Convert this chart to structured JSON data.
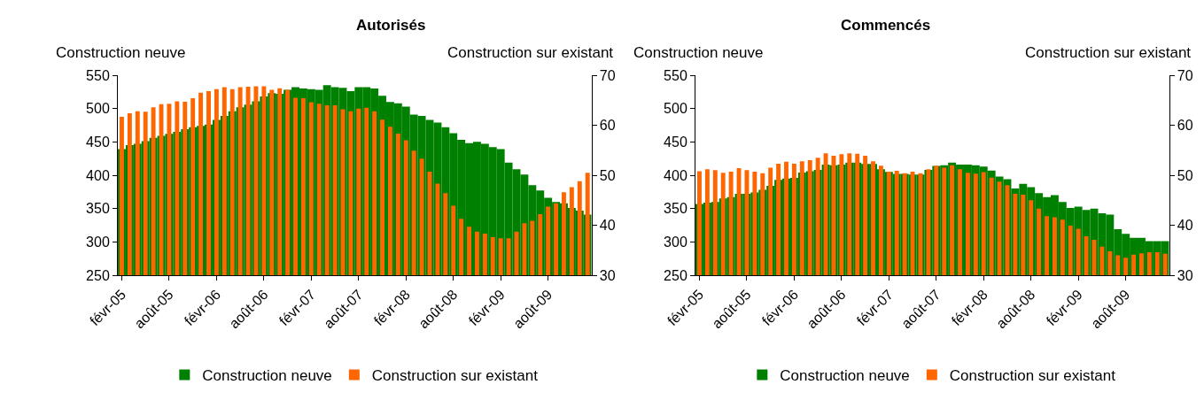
{
  "chart_data": [
    {
      "type": "bar",
      "title": "Autorisés",
      "ylabel": "Construction neuve",
      "y2label": "Construction sur existant",
      "categories": [
        "févr-05",
        null,
        null,
        null,
        null,
        null,
        "août-05",
        null,
        null,
        null,
        null,
        null,
        "févr-06",
        null,
        null,
        null,
        null,
        null,
        "août-06",
        null,
        null,
        null,
        null,
        null,
        "févr-07",
        null,
        null,
        null,
        null,
        null,
        "août-07",
        null,
        null,
        null,
        null,
        null,
        "févr-08",
        null,
        null,
        null,
        null,
        null,
        "août-08",
        null,
        null,
        null,
        null,
        null,
        "févr-09",
        null,
        null,
        null,
        null,
        null,
        "août-09",
        null,
        null,
        null,
        null,
        null
      ],
      "series": [
        {
          "name": "Construction neuve",
          "color": "#008000",
          "values": [
            439,
            445,
            447,
            451,
            456,
            459,
            462,
            465,
            469,
            472,
            474,
            476,
            483,
            489,
            496,
            502,
            506,
            511,
            518,
            523,
            522,
            528,
            532,
            530,
            529,
            528,
            535,
            532,
            531,
            526,
            532,
            532,
            530,
            519,
            510,
            508,
            503,
            491,
            489,
            483,
            479,
            472,
            463,
            453,
            448,
            450,
            447,
            442,
            439,
            419,
            409,
            401,
            385,
            377,
            366,
            360,
            358,
            351,
            347,
            341
          ]
        },
        {
          "name": "Construction sur existant",
          "color": "#ff6600",
          "axis": "y2",
          "values": [
            61.7,
            62.4,
            62.8,
            62.7,
            63.6,
            64.2,
            64.3,
            64.8,
            64.7,
            65.4,
            66.5,
            66.8,
            67.2,
            67.6,
            67.2,
            67.6,
            67.7,
            67.8,
            67.8,
            67.1,
            67.4,
            67.1,
            65.5,
            65.4,
            64.6,
            64.3,
            64.0,
            64.0,
            63.2,
            62.8,
            63.3,
            63.5,
            62.8,
            61.1,
            59.7,
            58.3,
            57.0,
            54.9,
            53.3,
            50.7,
            48.3,
            46.4,
            43.9,
            41.3,
            39.7,
            38.7,
            38.3,
            37.6,
            37.4,
            37.4,
            38.7,
            40.4,
            40.9,
            42.2,
            43.7,
            44.4,
            46.6,
            47.6,
            48.8,
            50.5
          ]
        }
      ],
      "ylim": [
        250,
        550
      ],
      "yticks": [
        250,
        300,
        350,
        400,
        450,
        500,
        550
      ],
      "y2lim": [
        30,
        70
      ],
      "y2ticks": [
        30,
        40,
        50,
        60,
        70
      ],
      "legend": "bottom"
    },
    {
      "type": "bar",
      "title": "Commencés",
      "ylabel": "Construction neuve",
      "y2label": "Construction sur existant",
      "categories": [
        "févr-05",
        null,
        null,
        null,
        null,
        null,
        "août-05",
        null,
        null,
        null,
        null,
        null,
        "févr-06",
        null,
        null,
        null,
        null,
        null,
        "août-06",
        null,
        null,
        null,
        null,
        null,
        "févr-07",
        null,
        null,
        null,
        null,
        null,
        "août-07",
        null,
        null,
        null,
        null,
        null,
        "févr-08",
        null,
        null,
        null,
        null,
        null,
        "août-08",
        null,
        null,
        null,
        null,
        null,
        "févr-09",
        null,
        null,
        null,
        null,
        null,
        "août-09",
        null,
        null,
        null,
        null,
        null
      ],
      "series": [
        {
          "name": "Construction neuve",
          "color": "#008000",
          "values": [
            357,
            359,
            360,
            365,
            367,
            372,
            372,
            374,
            378,
            384,
            393,
            395,
            396,
            404,
            406,
            408,
            416,
            415,
            416,
            419,
            419,
            417,
            417,
            409,
            405,
            402,
            402,
            401,
            401,
            408,
            414,
            415,
            419,
            416,
            416,
            415,
            413,
            407,
            398,
            394,
            380,
            387,
            382,
            373,
            367,
            370,
            360,
            351,
            353,
            348,
            350,
            343,
            341,
            319,
            312,
            306,
            306,
            301,
            301,
            301
          ]
        },
        {
          "name": "Construction sur existant",
          "color": "#ff6600",
          "axis": "y2",
          "values": [
            50.8,
            51.2,
            51.0,
            50.5,
            50.7,
            51.4,
            51.0,
            50.7,
            50.4,
            51.5,
            52.3,
            52.7,
            52.3,
            52.8,
            53.0,
            53.5,
            54.4,
            53.9,
            54.2,
            54.4,
            54.3,
            53.9,
            52.8,
            51.9,
            50.7,
            50.9,
            50.4,
            50.7,
            50.4,
            51.2,
            51.9,
            51.5,
            52.0,
            51.2,
            50.5,
            50.3,
            50.6,
            49.5,
            48.7,
            48.0,
            46.3,
            46.1,
            45.0,
            43.3,
            41.8,
            41.6,
            41.1,
            39.9,
            39.3,
            37.8,
            37.1,
            35.7,
            34.8,
            34.0,
            33.5,
            34.1,
            34.4,
            34.6,
            34.6,
            34.3
          ]
        }
      ],
      "ylim": [
        250,
        550
      ],
      "yticks": [
        250,
        300,
        350,
        400,
        450,
        500,
        550
      ],
      "y2lim": [
        30,
        70
      ],
      "y2ticks": [
        30,
        40,
        50,
        60,
        70
      ],
      "legend": "bottom"
    }
  ]
}
